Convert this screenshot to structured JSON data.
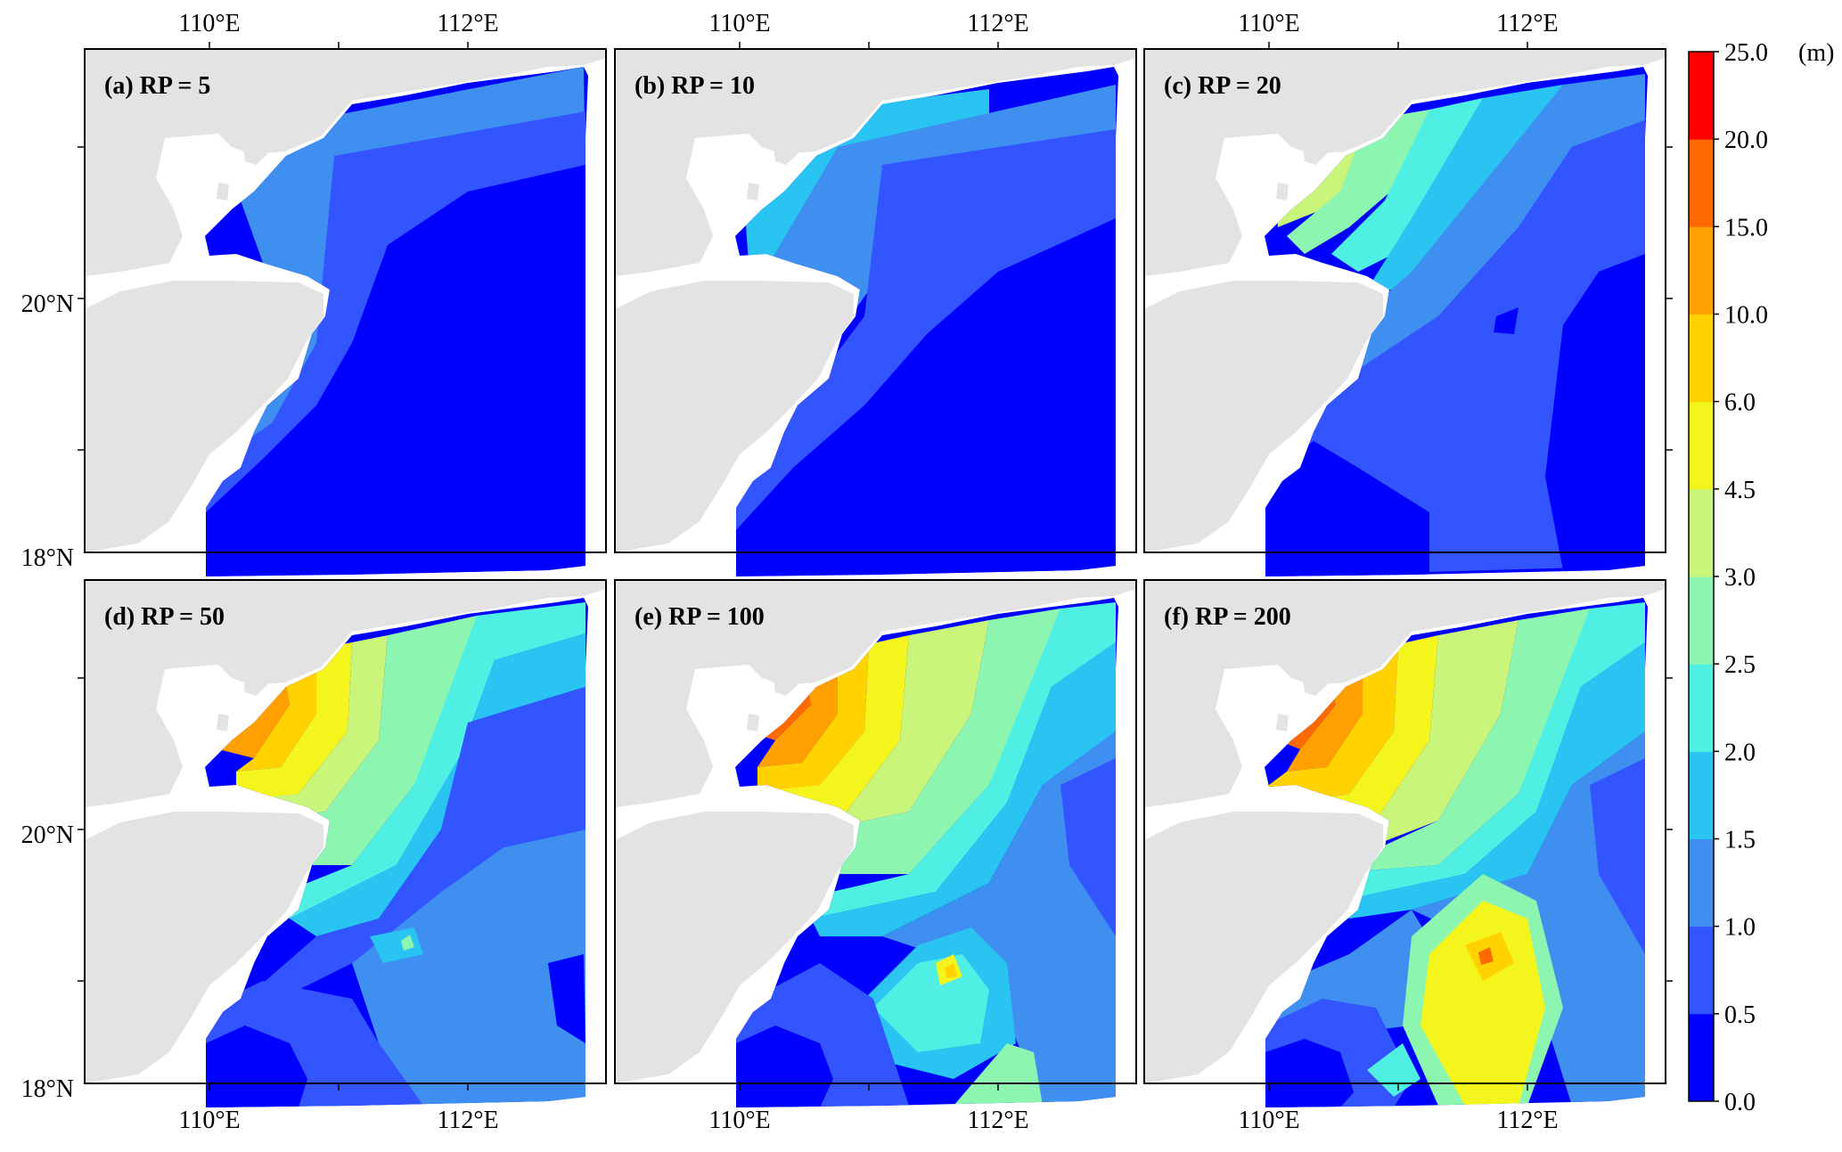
{
  "figure": {
    "panels": [
      {
        "label": "(a) RP = 5",
        "rp": 5
      },
      {
        "label": "(b) RP = 10",
        "rp": 10
      },
      {
        "label": "(c) RP = 20",
        "rp": 20
      },
      {
        "label": "(d) RP = 50",
        "rp": 50
      },
      {
        "label": "(e) RP = 100",
        "rp": 100
      },
      {
        "label": "(f) RP = 200",
        "rp": 200
      }
    ],
    "x_tick_labels": [
      "110°E",
      "112°E"
    ],
    "y_tick_labels": [
      "20°N",
      "18°N"
    ],
    "colorbar": {
      "unit": "(m)",
      "levels": [
        "0.0",
        "0.5",
        "1.0",
        "1.5",
        "2.0",
        "2.5",
        "3.0",
        "4.5",
        "6.0",
        "10.0",
        "15.0",
        "20.0",
        "25.0"
      ],
      "colors": [
        "#0000ff",
        "#3355ff",
        "#3f8ff0",
        "#29c4f2",
        "#4ff0e3",
        "#8cf5b0",
        "#c8f57a",
        "#f5f51e",
        "#ffd200",
        "#ffa000",
        "#ff6a00",
        "#ff0000"
      ]
    },
    "land_color": "#e3e3e3"
  }
}
